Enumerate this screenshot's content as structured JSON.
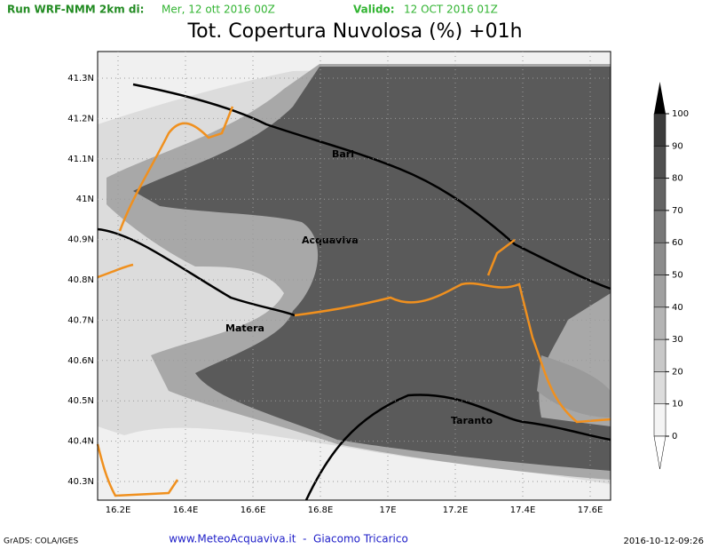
{
  "header": {
    "run_label": "Run WRF-NMM 2km di:",
    "run_date": "Mer, 12 ott 2016 00Z",
    "valid_label": "Valido:",
    "valid_date": "12 OCT 2016 01Z"
  },
  "title": "Tot. Copertura Nuvolosa (%) +01h",
  "map": {
    "lat_labels": [
      "41.3N",
      "41.2N",
      "41.1N",
      "41N",
      "40.9N",
      "40.8N",
      "40.7N",
      "40.6N",
      "40.5N",
      "40.4N",
      "40.3N"
    ],
    "lon_labels": [
      "16.2E",
      "16.4E",
      "16.6E",
      "16.8E",
      "17E",
      "17.2E",
      "17.4E",
      "17.6E"
    ],
    "cities": [
      "Bari",
      "Acquaviva",
      "Matera",
      "Taranto"
    ]
  },
  "colorbar": {
    "levels": [
      0,
      10,
      20,
      30,
      40,
      50,
      60,
      70,
      80,
      90,
      100
    ],
    "colors": [
      "#f4f4f4",
      "#dcdcdc",
      "#c8c8c8",
      "#b4b4b4",
      "#a0a0a0",
      "#8c8c8c",
      "#787878",
      "#646464",
      "#505050",
      "#3c3c3c"
    ]
  },
  "footer": {
    "software": "GrADS: COLA/IGES",
    "credit": "www.MeteoAcquaviva.it  -  Giacomo Tricarico",
    "timestamp": "2016-10-12-09:26"
  }
}
